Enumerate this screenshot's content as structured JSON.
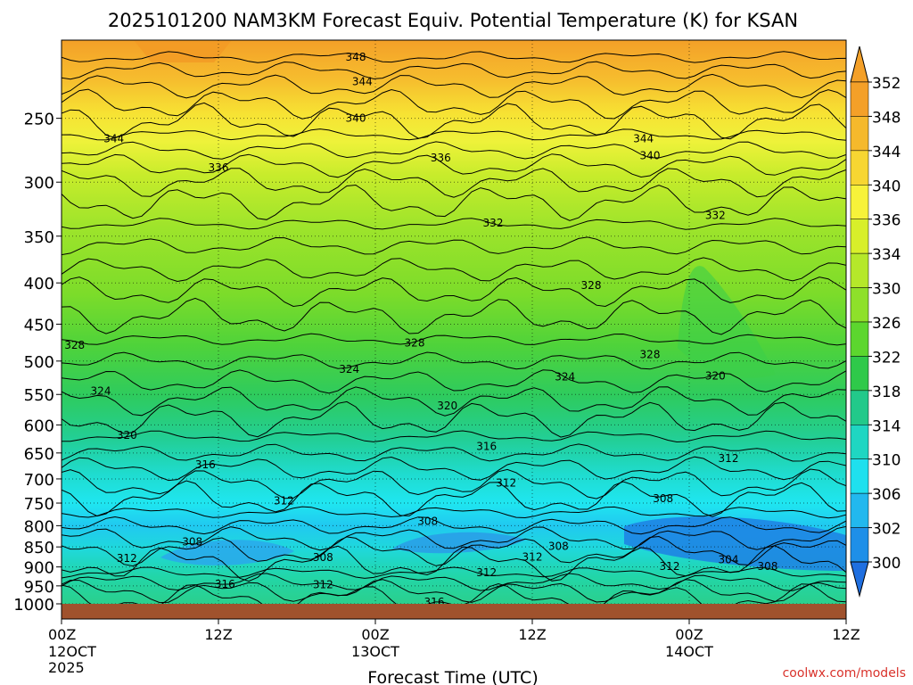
{
  "chart_data": {
    "type": "heatmap",
    "title": "2025101200 NAM3KM Forecast Equiv. Potential Temperature (K) for KSAN",
    "xlabel": "Forecast Time (UTC)",
    "ylabel": "",
    "y_axis": {
      "scale": "log-pressure",
      "reversed": true,
      "ylim": [
        1000,
        200
      ],
      "tick_labels": [
        "250",
        "300",
        "350",
        "400",
        "450",
        "500",
        "550",
        "600",
        "650",
        "700",
        "750",
        "800",
        "850",
        "900",
        "950",
        "1000"
      ]
    },
    "x_axis": {
      "xlim_hours": [
        0,
        60
      ],
      "ticks": [
        {
          "hour": 0,
          "top": "00Z",
          "mid": "12OCT",
          "bottom": "2025"
        },
        {
          "hour": 12,
          "top": "12Z",
          "mid": "",
          "bottom": ""
        },
        {
          "hour": 24,
          "top": "00Z",
          "mid": "13OCT",
          "bottom": ""
        },
        {
          "hour": 36,
          "top": "12Z",
          "mid": "",
          "bottom": ""
        },
        {
          "hour": 48,
          "top": "00Z",
          "mid": "14OCT",
          "bottom": ""
        },
        {
          "hour": 60,
          "top": "12Z",
          "mid": "",
          "bottom": ""
        }
      ]
    },
    "colorbar": {
      "labels": [
        "352",
        "348",
        "344",
        "340",
        "336",
        "334",
        "330",
        "326",
        "322",
        "318",
        "314",
        "310",
        "306",
        "302",
        "300"
      ],
      "colors": [
        "#f4a028",
        "#f5b92c",
        "#f7d632",
        "#f7f23a",
        "#d8ef2a",
        "#b5e82a",
        "#8ee02a",
        "#5cd62e",
        "#2fc94a",
        "#22c98a",
        "#1fd6c2",
        "#1fe0ee",
        "#22b8ee",
        "#1e8fe8",
        "#1f6fe0"
      ],
      "triangles": "both"
    },
    "contour_labels": [
      {
        "text": "348",
        "hour": 22.5,
        "p": 210
      },
      {
        "text": "344",
        "hour": 23,
        "p": 225
      },
      {
        "text": "344",
        "hour": 4,
        "p": 265
      },
      {
        "text": "344",
        "hour": 44.5,
        "p": 265
      },
      {
        "text": "340",
        "hour": 22.5,
        "p": 250
      },
      {
        "text": "340",
        "hour": 45,
        "p": 278
      },
      {
        "text": "336",
        "hour": 29,
        "p": 280
      },
      {
        "text": "336",
        "hour": 12,
        "p": 288
      },
      {
        "text": "332",
        "hour": 33,
        "p": 337
      },
      {
        "text": "332",
        "hour": 50,
        "p": 330
      },
      {
        "text": "328",
        "hour": 40.5,
        "p": 403
      },
      {
        "text": "328",
        "hour": 27,
        "p": 475
      },
      {
        "text": "328",
        "hour": 1,
        "p": 478
      },
      {
        "text": "328",
        "hour": 45,
        "p": 491
      },
      {
        "text": "324",
        "hour": 22,
        "p": 512
      },
      {
        "text": "324",
        "hour": 38.5,
        "p": 523
      },
      {
        "text": "324",
        "hour": 3,
        "p": 545
      },
      {
        "text": "320",
        "hour": 50,
        "p": 522
      },
      {
        "text": "320",
        "hour": 29.5,
        "p": 568
      },
      {
        "text": "320",
        "hour": 5,
        "p": 618
      },
      {
        "text": "316",
        "hour": 32.5,
        "p": 638
      },
      {
        "text": "316",
        "hour": 11,
        "p": 672
      },
      {
        "text": "312",
        "hour": 51,
        "p": 660
      },
      {
        "text": "312",
        "hour": 34,
        "p": 708
      },
      {
        "text": "312",
        "hour": 17,
        "p": 745
      },
      {
        "text": "308",
        "hour": 46,
        "p": 740
      },
      {
        "text": "308",
        "hour": 28,
        "p": 790
      },
      {
        "text": "308",
        "hour": 10,
        "p": 838
      },
      {
        "text": "308",
        "hour": 38,
        "p": 848
      },
      {
        "text": "308",
        "hour": 20,
        "p": 876
      },
      {
        "text": "308",
        "hour": 54,
        "p": 899
      },
      {
        "text": "312",
        "hour": 5,
        "p": 878
      },
      {
        "text": "312",
        "hour": 36,
        "p": 875
      },
      {
        "text": "312",
        "hour": 32.5,
        "p": 915
      },
      {
        "text": "312",
        "hour": 46.5,
        "p": 898
      },
      {
        "text": "304",
        "hour": 51,
        "p": 882
      },
      {
        "text": "316",
        "hour": 12.5,
        "p": 945
      },
      {
        "text": "312",
        "hour": 20,
        "p": 947
      },
      {
        "text": "316",
        "hour": 28.5,
        "p": 995
      }
    ],
    "grid": true,
    "legend": "colorbar-right"
  },
  "credit": "coolwx.com/models"
}
